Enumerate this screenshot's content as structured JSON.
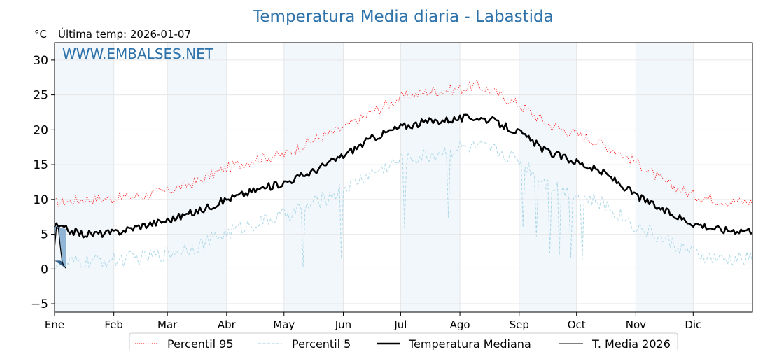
{
  "chart_data": {
    "type": "line",
    "title": "Temperatura Media diaria - Labastida",
    "unit_label": "°C",
    "last_temp_label": "Última temp: 2026-01-07",
    "watermark": "WWW.EMBALSES.NET",
    "xlabel": "",
    "ylabel": "",
    "ylim": [
      -6.2,
      32.5
    ],
    "xlim": [
      0,
      365
    ],
    "y_ticks": [
      -5,
      0,
      5,
      10,
      15,
      20,
      25,
      30
    ],
    "month_labels": [
      "Ene",
      "Feb",
      "Mar",
      "Abr",
      "May",
      "Jun",
      "Jul",
      "Ago",
      "Sep",
      "Oct",
      "Nov",
      "Dic"
    ],
    "month_starts": [
      0,
      31,
      59,
      90,
      120,
      151,
      181,
      212,
      243,
      273,
      304,
      334
    ],
    "grid": true,
    "legend_position": "bottom-center",
    "series": [
      {
        "name": "Percentil 95",
        "style": "dotted",
        "color": "#ff0000",
        "x": [
          0,
          15,
          31,
          45,
          59,
          75,
          90,
          105,
          120,
          135,
          151,
          166,
          181,
          196,
          212,
          220,
          228,
          243,
          258,
          273,
          288,
          304,
          319,
          334,
          349,
          364
        ],
        "y": [
          9.5,
          10,
          10.2,
          10.5,
          11.2,
          12.6,
          14.5,
          15.8,
          16.4,
          18.5,
          20.2,
          22.5,
          24.6,
          25.5,
          25.8,
          26.4,
          25.6,
          23.6,
          20.8,
          19.4,
          17.8,
          15.4,
          12.4,
          10.6,
          9.8,
          9.6
        ]
      },
      {
        "name": "Percentil 5",
        "style": "dashed",
        "color": "#add8e6",
        "x": [
          0,
          15,
          31,
          45,
          59,
          75,
          90,
          105,
          120,
          135,
          151,
          166,
          181,
          196,
          212,
          220,
          228,
          243,
          258,
          273,
          288,
          304,
          319,
          334,
          349,
          364
        ],
        "y": [
          0.6,
          1.0,
          1.3,
          1.6,
          2.2,
          3.4,
          5.2,
          6.6,
          7.7,
          9.3,
          11.5,
          13.8,
          15.6,
          16.3,
          17.4,
          17.5,
          17.2,
          15.7,
          12.3,
          10.6,
          9.2,
          6.2,
          4.2,
          2.2,
          1.2,
          1.5
        ]
      },
      {
        "name": "Temperatura Mediana",
        "style": "solid-thick",
        "color": "#000000",
        "x": [
          0,
          15,
          31,
          45,
          59,
          75,
          90,
          105,
          120,
          135,
          151,
          166,
          181,
          196,
          212,
          220,
          228,
          243,
          258,
          273,
          288,
          304,
          319,
          334,
          349,
          364
        ],
        "y": [
          6.2,
          5.0,
          5.2,
          6.2,
          7.0,
          8.3,
          10.0,
          11.3,
          12.4,
          14.0,
          16.3,
          18.8,
          20.4,
          21.2,
          21.6,
          21.8,
          21.4,
          19.6,
          16.8,
          15.4,
          13.7,
          10.6,
          8.3,
          6.6,
          5.6,
          5.6
        ]
      },
      {
        "name": "T. Media 2026",
        "style": "solid-thin",
        "color": "#000000",
        "x": [
          0,
          1,
          2,
          3,
          4,
          5,
          6
        ],
        "y": [
          2.8,
          6.0,
          5.8,
          3.2,
          1.0,
          0.4,
          0.1
        ]
      }
    ]
  }
}
